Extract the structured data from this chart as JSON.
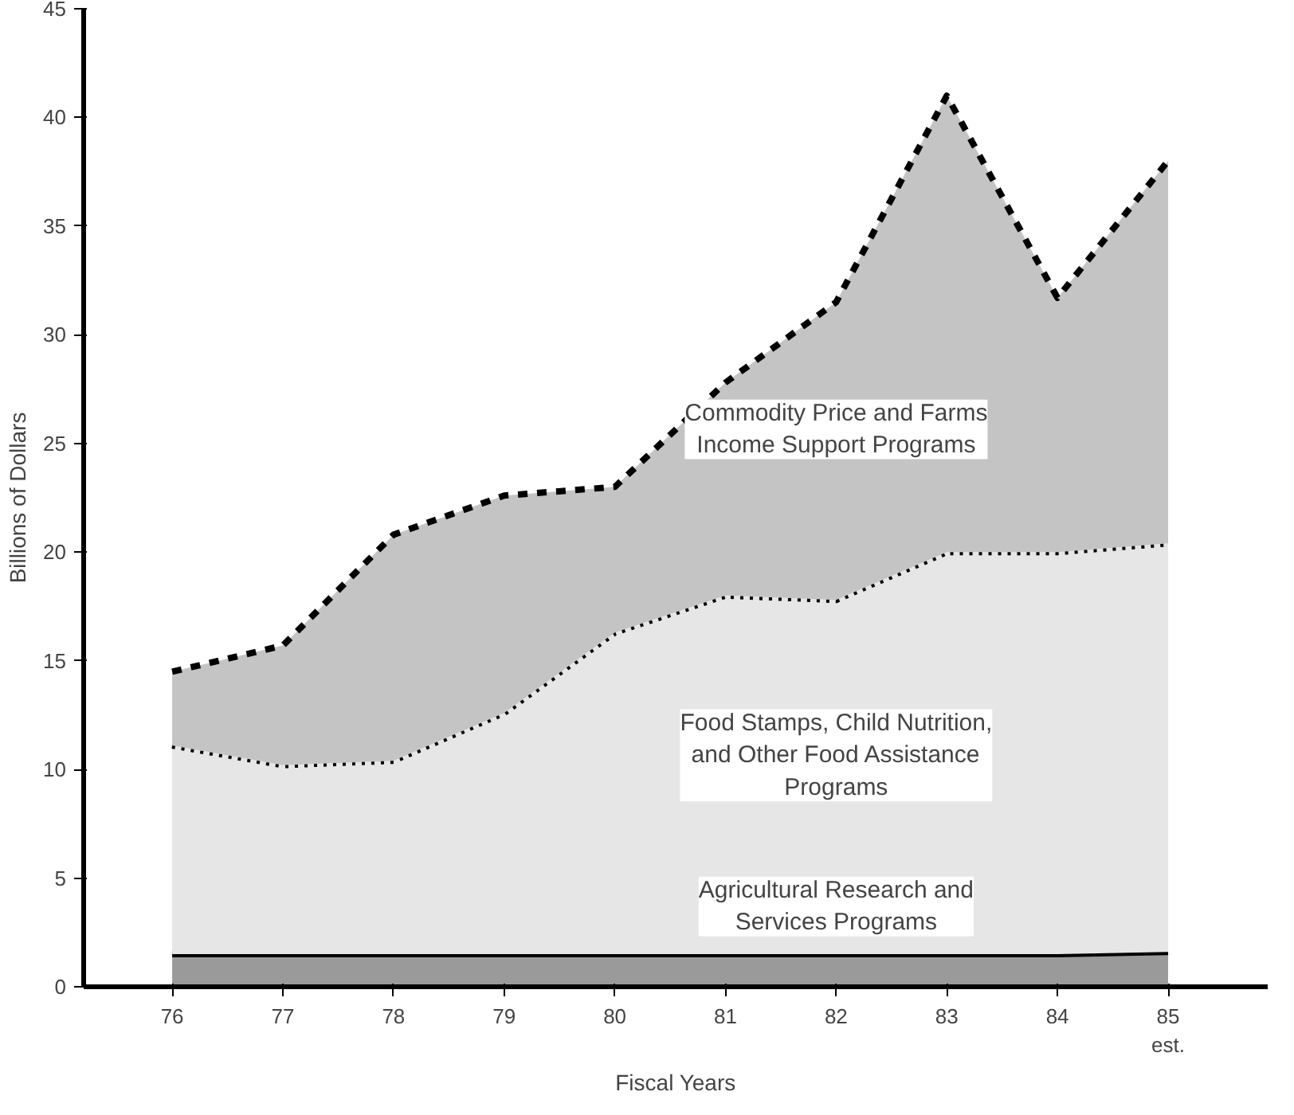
{
  "chart_data": {
    "type": "area",
    "stacked": true,
    "xlabel": "Fiscal Years",
    "ylabel": "Billions of Dollars",
    "x": [
      76,
      77,
      78,
      79,
      80,
      81,
      82,
      83,
      84,
      85
    ],
    "xlim": [
      75.2,
      85.9
    ],
    "ylim": [
      0,
      45
    ],
    "xticks": [
      76,
      77,
      78,
      79,
      80,
      81,
      82,
      83,
      84,
      {
        "value": 85,
        "label": "85\nest."
      }
    ],
    "yticks": [
      0,
      5,
      10,
      15,
      20,
      25,
      30,
      35,
      40,
      45
    ],
    "grid": false,
    "legend": false,
    "series": [
      {
        "name": "Agricultural Research and Services Programs",
        "color": "#9a9a9a",
        "values": [
          1.5,
          1.5,
          1.5,
          1.5,
          1.5,
          1.5,
          1.5,
          1.5,
          1.5,
          1.6
        ]
      },
      {
        "name": "Food Stamps, Child Nutrition, and Other Food Assistance Programs",
        "color": "#e6e6e6",
        "values": [
          9.6,
          8.7,
          8.9,
          11.1,
          14.8,
          16.5,
          16.3,
          18.5,
          18.5,
          18.8
        ]
      },
      {
        "name": "Commodity Price and Farms Income Support Programs",
        "color": "#c4c4c4",
        "values": [
          3.4,
          5.5,
          10.4,
          10.0,
          6.7,
          9.8,
          13.7,
          21.0,
          11.7,
          17.6
        ]
      }
    ]
  }
}
